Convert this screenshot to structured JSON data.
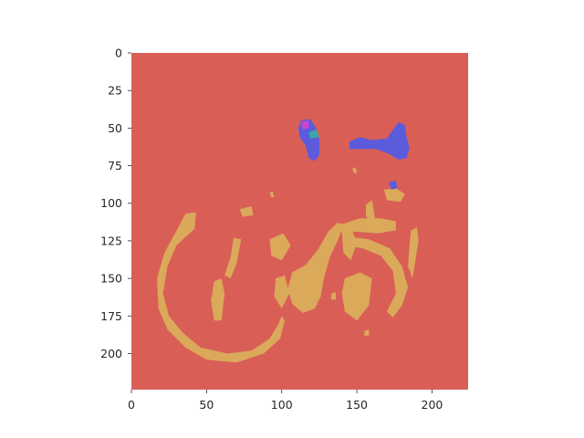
{
  "chart_data": {
    "type": "heatmap",
    "title": "",
    "xlabel": "",
    "ylabel": "",
    "xlim": [
      0,
      224
    ],
    "ylim": [
      224,
      0
    ],
    "grid": false,
    "image_size": [
      224,
      224
    ],
    "x_ticks": [
      0,
      50,
      100,
      150,
      200
    ],
    "x_tick_labels": [
      "0",
      "50",
      "100",
      "150",
      "200"
    ],
    "y_ticks": [
      0,
      25,
      50,
      75,
      100,
      125,
      150,
      175,
      200
    ],
    "y_tick_labels": [
      "0",
      "25",
      "50",
      "75",
      "100",
      "125",
      "150",
      "175",
      "200"
    ],
    "colors": {
      "background": "#d95f56",
      "object": "#dba95a",
      "person": "#5b5bdc",
      "magenta": "#cc44cc",
      "teal": "#3aa8a8"
    },
    "regions": [
      {
        "color_key": "object",
        "points": [
          [
            36,
            107
          ],
          [
            43,
            106
          ],
          [
            42,
            117
          ],
          [
            30,
            128
          ],
          [
            24,
            142
          ],
          [
            21,
            160
          ],
          [
            25,
            175
          ],
          [
            34,
            186
          ],
          [
            46,
            196
          ],
          [
            64,
            200
          ],
          [
            80,
            198
          ],
          [
            92,
            190
          ],
          [
            98,
            180
          ],
          [
            100,
            175
          ],
          [
            102,
            178
          ],
          [
            99,
            190
          ],
          [
            88,
            200
          ],
          [
            70,
            206
          ],
          [
            50,
            204
          ],
          [
            36,
            196
          ],
          [
            24,
            184
          ],
          [
            18,
            170
          ],
          [
            17,
            150
          ],
          [
            22,
            133
          ],
          [
            29,
            120
          ]
        ]
      },
      {
        "color_key": "object",
        "points": [
          [
            68,
            123
          ],
          [
            73,
            124
          ],
          [
            70,
            140
          ],
          [
            66,
            150
          ],
          [
            62,
            148
          ],
          [
            66,
            136
          ]
        ]
      },
      {
        "color_key": "object",
        "points": [
          [
            55,
            152
          ],
          [
            60,
            150
          ],
          [
            62,
            160
          ],
          [
            60,
            178
          ],
          [
            55,
            178
          ],
          [
            53,
            165
          ]
        ]
      },
      {
        "color_key": "object",
        "points": [
          [
            92,
            124
          ],
          [
            101,
            120
          ],
          [
            106,
            128
          ],
          [
            100,
            138
          ],
          [
            93,
            135
          ]
        ]
      },
      {
        "color_key": "object",
        "points": [
          [
            96,
            150
          ],
          [
            102,
            148
          ],
          [
            105,
            160
          ],
          [
            100,
            170
          ],
          [
            95,
            162
          ]
        ]
      },
      {
        "color_key": "object",
        "points": [
          [
            107,
            146
          ],
          [
            116,
            141
          ],
          [
            124,
            131
          ],
          [
            131,
            119
          ],
          [
            137,
            113
          ],
          [
            141,
            114
          ],
          [
            138,
            123
          ],
          [
            132,
            136
          ],
          [
            128,
            150
          ],
          [
            126,
            162
          ],
          [
            122,
            170
          ],
          [
            114,
            173
          ],
          [
            107,
            167
          ],
          [
            104,
            157
          ]
        ]
      },
      {
        "color_key": "object",
        "points": [
          [
            137,
            115
          ],
          [
            152,
            110
          ],
          [
            166,
            110
          ],
          [
            176,
            112
          ],
          [
            176,
            118
          ],
          [
            164,
            120
          ],
          [
            150,
            119
          ],
          [
            140,
            119
          ]
        ]
      },
      {
        "color_key": "object",
        "points": [
          [
            140,
            118
          ],
          [
            146,
            116
          ],
          [
            150,
            126
          ],
          [
            146,
            138
          ],
          [
            141,
            133
          ]
        ]
      },
      {
        "color_key": "object",
        "points": [
          [
            142,
            150
          ],
          [
            152,
            146
          ],
          [
            160,
            150
          ],
          [
            158,
            168
          ],
          [
            150,
            178
          ],
          [
            142,
            172
          ],
          [
            140,
            160
          ]
        ]
      },
      {
        "color_key": "object",
        "points": [
          [
            142,
            122
          ],
          [
            158,
            124
          ],
          [
            172,
            130
          ],
          [
            180,
            142
          ],
          [
            184,
            156
          ],
          [
            180,
            168
          ],
          [
            174,
            176
          ],
          [
            170,
            172
          ],
          [
            176,
            160
          ],
          [
            174,
            145
          ],
          [
            166,
            135
          ],
          [
            154,
            130
          ],
          [
            142,
            128
          ]
        ]
      },
      {
        "color_key": "object",
        "points": [
          [
            156,
            101
          ],
          [
            160,
            98
          ],
          [
            162,
            110
          ],
          [
            159,
            114
          ],
          [
            156,
            108
          ]
        ]
      },
      {
        "color_key": "object",
        "points": [
          [
            168,
            91
          ],
          [
            176,
            90
          ],
          [
            182,
            94
          ],
          [
            179,
            99
          ],
          [
            170,
            98
          ]
        ]
      },
      {
        "color_key": "object",
        "points": [
          [
            186,
            118
          ],
          [
            190,
            116
          ],
          [
            191,
            125
          ],
          [
            189,
            138
          ],
          [
            187,
            150
          ],
          [
            184,
            142
          ],
          [
            185,
            128
          ]
        ]
      },
      {
        "color_key": "object",
        "points": [
          [
            72,
            104
          ],
          [
            80,
            102
          ],
          [
            81,
            108
          ],
          [
            74,
            109
          ]
        ]
      },
      {
        "color_key": "object",
        "points": [
          [
            92,
            93
          ],
          [
            94,
            92
          ],
          [
            95,
            96
          ],
          [
            93,
            96
          ]
        ]
      },
      {
        "color_key": "object",
        "points": [
          [
            147,
            77
          ],
          [
            149,
            76
          ],
          [
            150,
            80
          ],
          [
            148,
            80
          ]
        ]
      },
      {
        "color_key": "object",
        "points": [
          [
            133,
            160
          ],
          [
            136,
            159
          ],
          [
            136,
            164
          ],
          [
            133,
            164
          ]
        ]
      },
      {
        "color_key": "object",
        "points": [
          [
            155,
            185
          ],
          [
            158,
            184
          ],
          [
            158,
            188
          ],
          [
            155,
            188
          ]
        ]
      },
      {
        "color_key": "person",
        "points": [
          [
            113,
            45
          ],
          [
            119,
            44
          ],
          [
            123,
            50
          ],
          [
            125,
            58
          ],
          [
            125,
            68
          ],
          [
            122,
            72
          ],
          [
            118,
            70
          ],
          [
            116,
            62
          ],
          [
            112,
            56
          ],
          [
            111,
            50
          ]
        ]
      },
      {
        "color_key": "person",
        "points": [
          [
            145,
            59
          ],
          [
            152,
            56
          ],
          [
            160,
            58
          ],
          [
            170,
            57
          ],
          [
            174,
            51
          ],
          [
            178,
            46
          ],
          [
            182,
            48
          ],
          [
            183,
            56
          ],
          [
            185,
            63
          ],
          [
            183,
            70
          ],
          [
            178,
            71
          ],
          [
            171,
            67
          ],
          [
            163,
            64
          ],
          [
            152,
            64
          ],
          [
            145,
            64
          ]
        ]
      },
      {
        "color_key": "person",
        "points": [
          [
            171,
            86
          ],
          [
            176,
            85
          ],
          [
            177,
            90
          ],
          [
            173,
            91
          ]
        ]
      },
      {
        "color_key": "magenta",
        "points": [
          [
            113,
            46
          ],
          [
            118,
            45
          ],
          [
            118,
            50
          ],
          [
            114,
            51
          ]
        ]
      },
      {
        "color_key": "teal",
        "points": [
          [
            118,
            53
          ],
          [
            123,
            51
          ],
          [
            125,
            56
          ],
          [
            119,
            57
          ]
        ]
      }
    ]
  }
}
